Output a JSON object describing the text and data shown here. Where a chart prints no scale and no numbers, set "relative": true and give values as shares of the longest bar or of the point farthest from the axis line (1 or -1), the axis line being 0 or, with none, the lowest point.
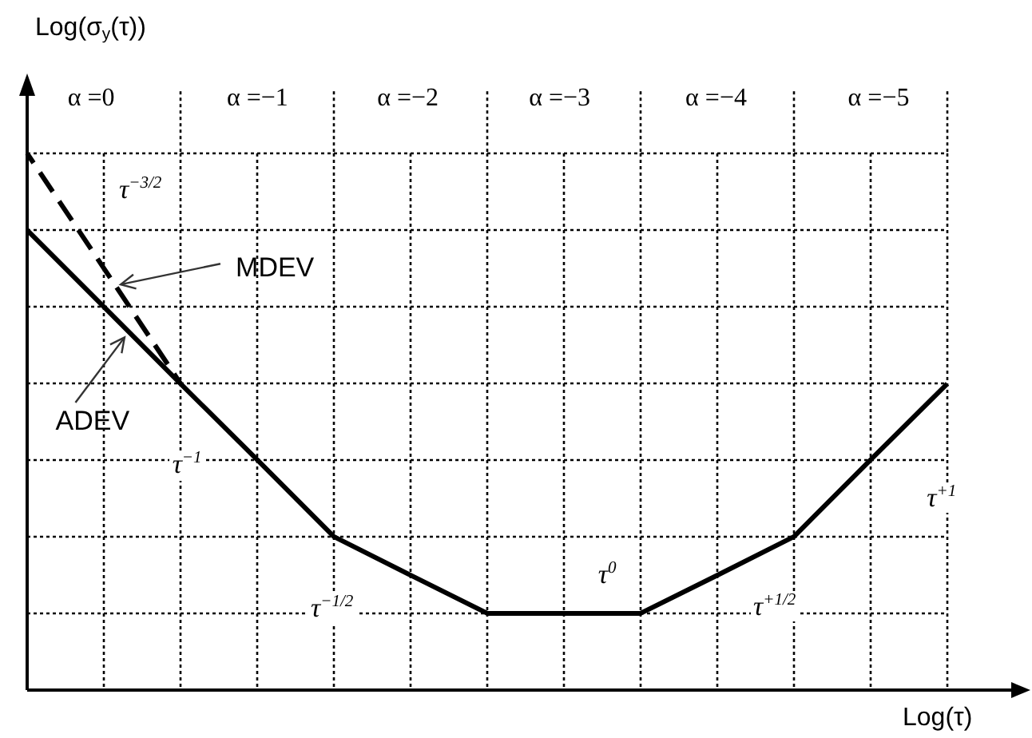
{
  "chart_data": {
    "type": "line",
    "ylabel": "Log(σ$_{y}$(τ))",
    "xlabel": "Log(τ)",
    "relative": true,
    "grid": true,
    "legend": false,
    "marker": "none",
    "categories": [
      null,
      null,
      null,
      null,
      null,
      null,
      null,
      null,
      null,
      null,
      null,
      null,
      null
    ],
    "series": [
      {
        "name": "ADEV",
        "color": "#000000",
        "line_style": "solid",
        "values": [
          0.857,
          0.714,
          0.571,
          0.429,
          0.286,
          0.214,
          0.143,
          0.143,
          0.143,
          0.214,
          0.286,
          0.429,
          0.571
        ]
      },
      {
        "name": "MDEV",
        "color": "#000000",
        "line_style": "dashed",
        "values": [
          1,
          0.786,
          0.571,
          null,
          null,
          null,
          null,
          null,
          null,
          null,
          null,
          null,
          null
        ]
      }
    ],
    "annotations": [
      "α =0",
      "α =−1",
      "α =−2",
      "α =−3",
      "α =−4",
      "α =−5",
      "τ$^{−3/2}$",
      "τ$^{−1}$",
      "τ$^{−1/2}$",
      "τ$^{0}$",
      "τ$^{+1/2}$",
      "τ$^{+1}$"
    ]
  }
}
